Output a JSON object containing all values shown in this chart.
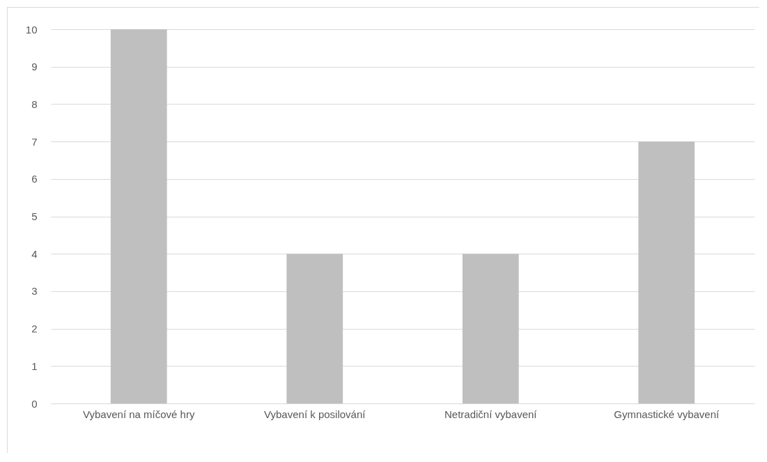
{
  "chart_data": {
    "type": "bar",
    "categories": [
      "Vybavení na míčové hry",
      "Vybavení k posilování",
      "Netradiční vybavení",
      "Gymnastické vybavení"
    ],
    "values": [
      10,
      4,
      4,
      7
    ],
    "color": "#bfbfbf",
    "ylim": [
      0,
      10
    ],
    "yticks": [
      0,
      1,
      2,
      3,
      4,
      5,
      6,
      7,
      8,
      9,
      10
    ],
    "grid": "y"
  }
}
